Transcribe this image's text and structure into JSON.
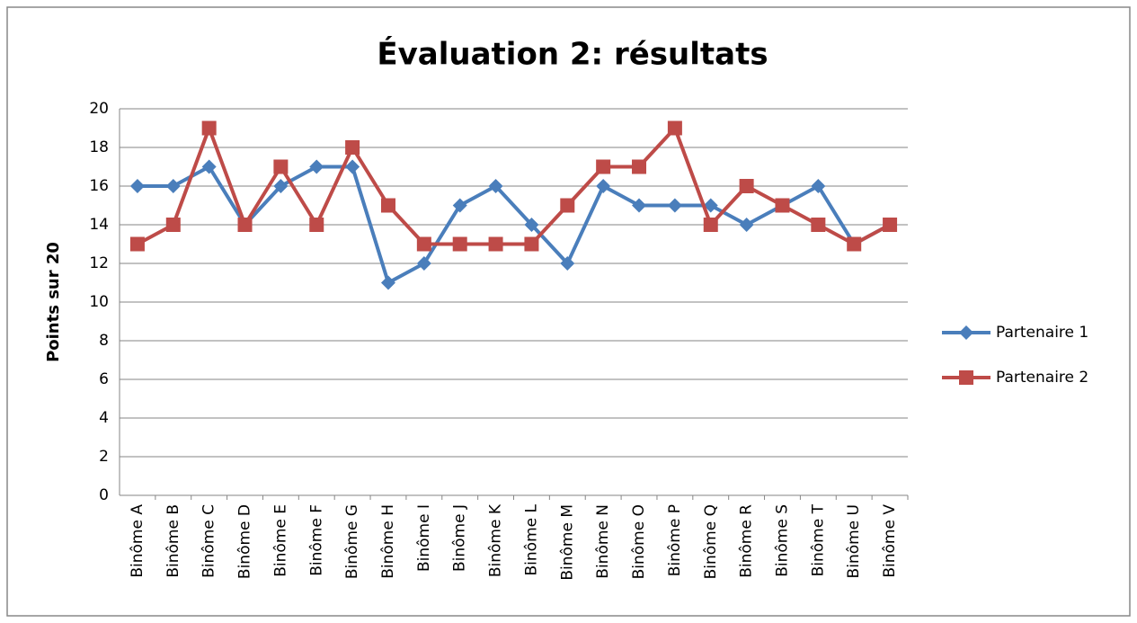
{
  "chart_data": {
    "type": "line",
    "title": "Évaluation 2: résultats",
    "y_label": "Points sur 20",
    "categories": [
      "Binôme A",
      "Binôme B",
      "Binôme C",
      "Binôme D",
      "Binôme E",
      "Binôme F",
      "Binôme G",
      "Binôme H",
      "Binôme I",
      "Binôme J",
      "Binôme K",
      "Binôme L",
      "Binôme M",
      "Binôme N",
      "Binôme O",
      "Binôme P",
      "Binôme Q",
      "Binôme R",
      "Binôme S",
      "Binôme T",
      "Binôme U",
      "Binôme V"
    ],
    "series": [
      {
        "name": "Partenaire 1",
        "color": "#4a7ebb",
        "marker": "diamond",
        "values": [
          16,
          16,
          17,
          14,
          16,
          17,
          17,
          11,
          12,
          15,
          16,
          14,
          12,
          16,
          15,
          15,
          15,
          14,
          15,
          16,
          13,
          14
        ]
      },
      {
        "name": "Partenaire 2",
        "color": "#be4b48",
        "marker": "square",
        "values": [
          13,
          14,
          19,
          14,
          17,
          14,
          18,
          15,
          13,
          13,
          13,
          13,
          15,
          17,
          17,
          19,
          14,
          16,
          15,
          14,
          13,
          14
        ]
      }
    ],
    "ylim": [
      0,
      20
    ],
    "yticks": [
      0,
      2,
      4,
      6,
      8,
      10,
      12,
      14,
      16,
      18,
      20
    ],
    "grid": true,
    "legend": "right"
  }
}
